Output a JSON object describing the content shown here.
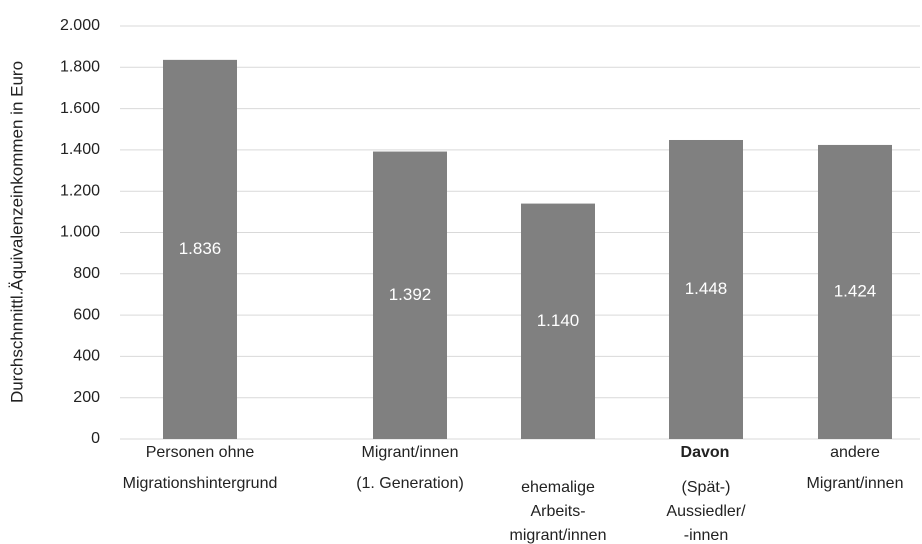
{
  "chart_data": {
    "type": "bar",
    "y_axis_label": "Durchschnnittl.Äquivalenzeinkommen in Euro",
    "annotation": "Davon",
    "categories": [
      [
        "Personen ohne",
        "Migrationshintergrund"
      ],
      [
        "Migrant/innen",
        "(1. Generation)"
      ],
      [
        "ehemalige",
        "Arbeits-",
        "migrant/innen"
      ],
      [
        "(Spät-)",
        "Aussiedler/",
        "-innen"
      ],
      [
        "andere",
        "Migrant/innen"
      ]
    ],
    "values": [
      1836,
      1392,
      1140,
      1448,
      1424
    ],
    "value_labels": [
      "1.836",
      "1.392",
      "1.140",
      "1.448",
      "1.424"
    ],
    "color": "#808080",
    "ylim": [
      0,
      2000
    ],
    "yticks": [
      0,
      200,
      400,
      600,
      800,
      {
        "value": 1000,
        "label": "1.000"
      },
      {
        "value": 1200,
        "label": "1.200"
      },
      {
        "value": 1400,
        "label": "1.400"
      },
      {
        "value": 1600,
        "label": "1.600"
      },
      {
        "value": 1800,
        "label": "1.800"
      },
      {
        "value": 2000,
        "label": "2.000"
      }
    ],
    "grid": true
  }
}
